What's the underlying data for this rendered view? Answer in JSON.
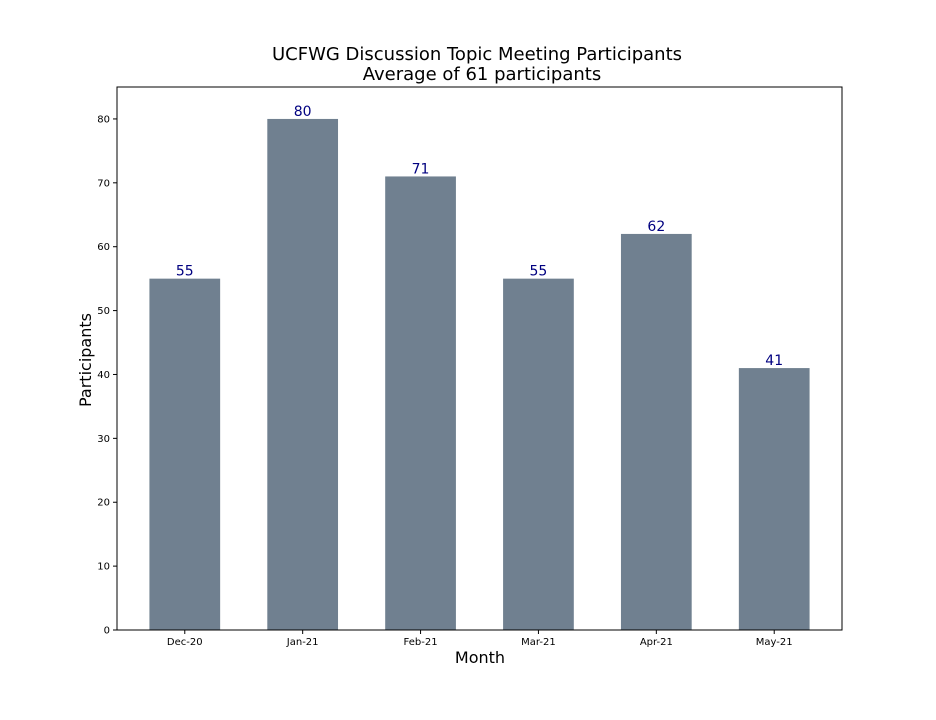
{
  "chart_data": {
    "type": "bar",
    "title": "UCFWG Discussion Topic Meeting Participants",
    "subtitle": "Average of 61 participants",
    "xlabel": "Month",
    "ylabel": "Participants",
    "categories": [
      "Dec-20",
      "Jan-21",
      "Feb-21",
      "Mar-21",
      "Apr-21",
      "May-21"
    ],
    "values": [
      55,
      80,
      71,
      55,
      62,
      41
    ],
    "data_labels": [
      "55",
      "80",
      "71",
      "55",
      "62",
      "41"
    ],
    "ylim": [
      0,
      85
    ],
    "yticks": [
      0,
      10,
      20,
      30,
      40,
      50,
      60,
      70,
      80
    ],
    "ytick_labels": [
      "0",
      "10",
      "20",
      "30",
      "40",
      "50",
      "60",
      "70",
      "80"
    ],
    "grid": false,
    "legend": "none",
    "colors": {
      "bar": "#708090",
      "data_label": "#000080",
      "axis": "#000000"
    }
  }
}
